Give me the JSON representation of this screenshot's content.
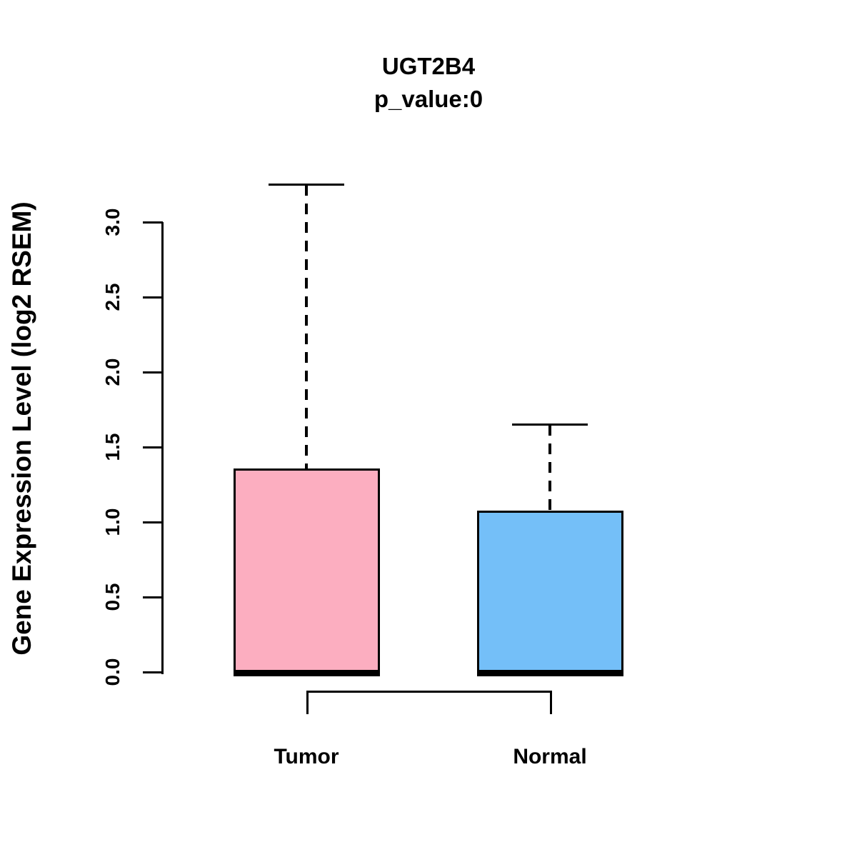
{
  "chart_data": {
    "type": "boxplot",
    "title": "UGT2B4",
    "subtitle": "p_value:0",
    "ylabel": "Gene Expression Level (log2 RSEM)",
    "xlabel": "",
    "ylim": [
      0,
      3.3
    ],
    "yticks": [
      0,
      0.5,
      1,
      1.5,
      2,
      2.5,
      3
    ],
    "ytick_labels": [
      "0.0",
      "0.5",
      "1.0",
      "1.5",
      "2.0",
      "2.5",
      "3.0"
    ],
    "categories": [
      "Tumor",
      "Normal"
    ],
    "series": [
      {
        "name": "Tumor",
        "color": "#FCAEC0",
        "lower_whisker": 0,
        "q1": 0,
        "median": 0,
        "q3": 1.35,
        "upper_whisker": 3.25,
        "outliers": []
      },
      {
        "name": "Normal",
        "color": "#74BFF8",
        "lower_whisker": 0,
        "q1": 0,
        "median": 0,
        "q3": 1.07,
        "upper_whisker": 1.65,
        "outliers": []
      }
    ],
    "comparison_bracket": {
      "between": [
        "Tumor",
        "Normal"
      ]
    },
    "grid": false,
    "legend": false,
    "background": "#FFFFFF",
    "line_color": "#000000"
  }
}
